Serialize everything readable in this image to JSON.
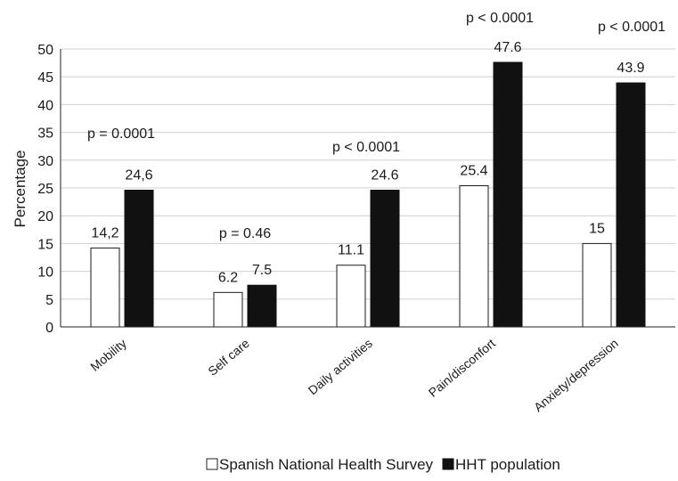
{
  "chart_data": {
    "type": "bar",
    "title": "",
    "xlabel": "",
    "ylabel": "Percentage",
    "ylim": [
      0,
      50
    ],
    "yticks": [
      0,
      5,
      10,
      15,
      20,
      25,
      30,
      35,
      40,
      45,
      50
    ],
    "grid": "horizontal",
    "legend_position": "bottom",
    "categories": [
      "Mobility",
      "Self care",
      "Daily activities",
      "Pain/disconfort",
      "Anxiety/depression"
    ],
    "series": [
      {
        "name": "Spanish National Health Survey",
        "values": [
          14.2,
          6.2,
          11.1,
          25.4,
          15
        ],
        "labels": [
          "14,2",
          "6.2",
          "11.1",
          "25.4",
          "15"
        ],
        "fill": "#ffffff",
        "stroke": "#1a1a1a"
      },
      {
        "name": "HHT population",
        "values": [
          24.6,
          7.5,
          24.6,
          47.6,
          43.9
        ],
        "labels": [
          "24,6",
          "7.5",
          "24.6",
          "47.6",
          "43.9"
        ],
        "fill": "#111111",
        "stroke": "#111111"
      }
    ],
    "annotations": [
      "p = 0.0001",
      "p = 0.46",
      "p < 0.0001",
      "p < 0.0001",
      "p < 0.0001"
    ],
    "legend": {
      "text": "Spanish National Health Survey HHT population"
    }
  }
}
